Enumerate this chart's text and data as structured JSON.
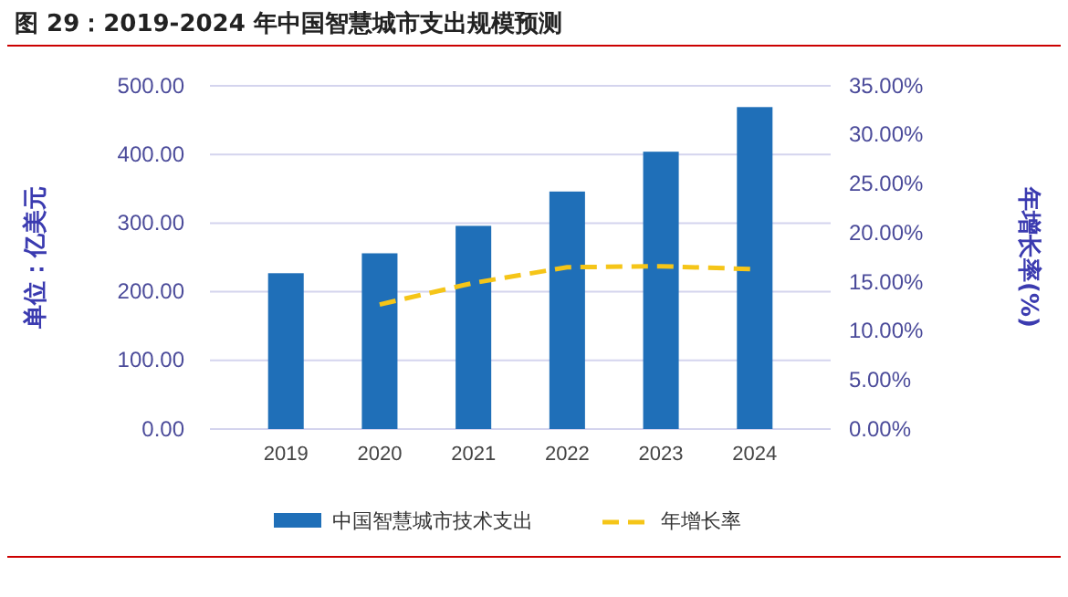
{
  "chart_data": {
    "type": "bar",
    "title": "图 29：2019-2024 年中国智慧城市支出规模预测",
    "categories": [
      "2019",
      "2020",
      "2021",
      "2022",
      "2023",
      "2024"
    ],
    "series": [
      {
        "name": "中国智慧城市技术支出",
        "color": "#1f6fb8",
        "values": [
          227,
          256,
          296,
          346,
          404,
          469
        ]
      },
      {
        "name": "年增长率",
        "type": "line",
        "axis": "y2",
        "color": "#f5c518",
        "line_style": "dashed",
        "values": [
          null,
          12.7,
          14.9,
          16.5,
          16.6,
          16.3
        ]
      }
    ],
    "ylabel": "单位：亿美元",
    "y2label": "年增长率(%)",
    "ylim": [
      0,
      500
    ],
    "yticks": [
      {
        "value": 0,
        "label": "0.00"
      },
      {
        "value": 100,
        "label": "100.00"
      },
      {
        "value": 200,
        "label": "200.00"
      },
      {
        "value": 300,
        "label": "300.00"
      },
      {
        "value": 400,
        "label": "400.00"
      },
      {
        "value": 500,
        "label": "500.00"
      }
    ],
    "y2lim": [
      0,
      35
    ],
    "y2ticks": [
      {
        "value": 0,
        "label": "0.00%"
      },
      {
        "value": 5,
        "label": "5.00%"
      },
      {
        "value": 10,
        "label": "10.00%"
      },
      {
        "value": 15,
        "label": "15.00%"
      },
      {
        "value": 20,
        "label": "20.00%"
      },
      {
        "value": 25,
        "label": "25.00%"
      },
      {
        "value": 30,
        "label": "30.00%"
      },
      {
        "value": 35,
        "label": "35.00%"
      }
    ],
    "grid": "y",
    "legend": "bottom",
    "marker": "none"
  }
}
